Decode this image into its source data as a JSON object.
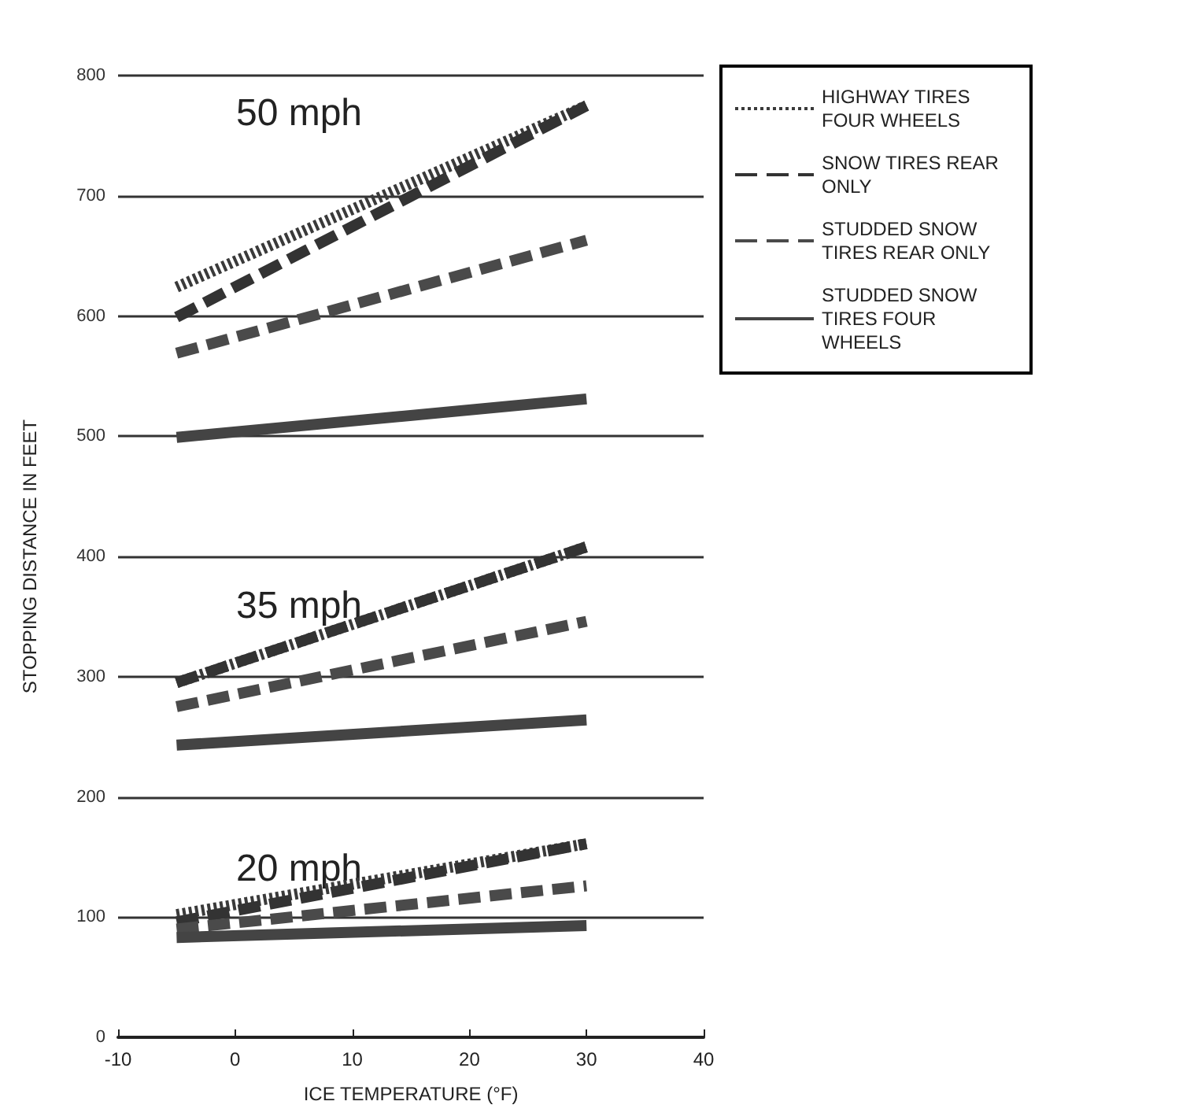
{
  "chart_data": {
    "type": "line",
    "xlabel": "ICE TEMPERATURE (°F)",
    "ylabel": "STOPPING DISTANCE IN FEET",
    "xlim": [
      -10,
      40
    ],
    "xticks": [
      -10,
      0,
      10,
      20,
      30,
      40
    ],
    "ylim": [
      0,
      800
    ],
    "yticks": [
      0,
      100,
      200,
      300,
      400,
      500,
      600,
      700,
      800
    ],
    "grid": "y",
    "legend": "top right",
    "marker": "none",
    "x": [
      -5,
      30
    ],
    "annotations": [
      "50 mph",
      "35 mph",
      "20 mph"
    ],
    "series": [
      {
        "name": "HIGHWAY TIRES FOUR WHEELS",
        "color": "#3a3a3a",
        "line_style": "dotted",
        "values": [
          624,
          775
        ]
      },
      {
        "name": "SNOW TIRES REAR ONLY",
        "color": "#333333",
        "line_style": "dashed",
        "values": [
          599,
          775
        ]
      },
      {
        "name": "STUDDED SNOW TIRES REAR ONLY",
        "color": "#4a4a4a",
        "line_style": "dashed",
        "values": [
          569,
          663
        ]
      },
      {
        "name": "STUDDED SNOW TIRES FOUR WHEELS",
        "color": "#444444",
        "line_style": "solid",
        "values": [
          499,
          531
        ]
      },
      {
        "color": "#3a3a3a",
        "line_style": "dotted",
        "values": [
          295,
          408
        ]
      },
      {
        "color": "#333333",
        "line_style": "dashed",
        "values": [
          295,
          408
        ]
      },
      {
        "color": "#4a4a4a",
        "line_style": "dashed",
        "values": [
          275,
          346
        ]
      },
      {
        "color": "#444444",
        "line_style": "solid",
        "values": [
          243,
          264
        ]
      },
      {
        "color": "#3a3a3a",
        "line_style": "dotted",
        "values": [
          102,
          161
        ]
      },
      {
        "color": "#333333",
        "line_style": "dashed",
        "values": [
          96,
          161
        ]
      },
      {
        "color": "#4a4a4a",
        "line_style": "dashed",
        "values": [
          90,
          126
        ]
      },
      {
        "color": "#444444",
        "line_style": "solid",
        "values": [
          83,
          93
        ]
      }
    ]
  }
}
